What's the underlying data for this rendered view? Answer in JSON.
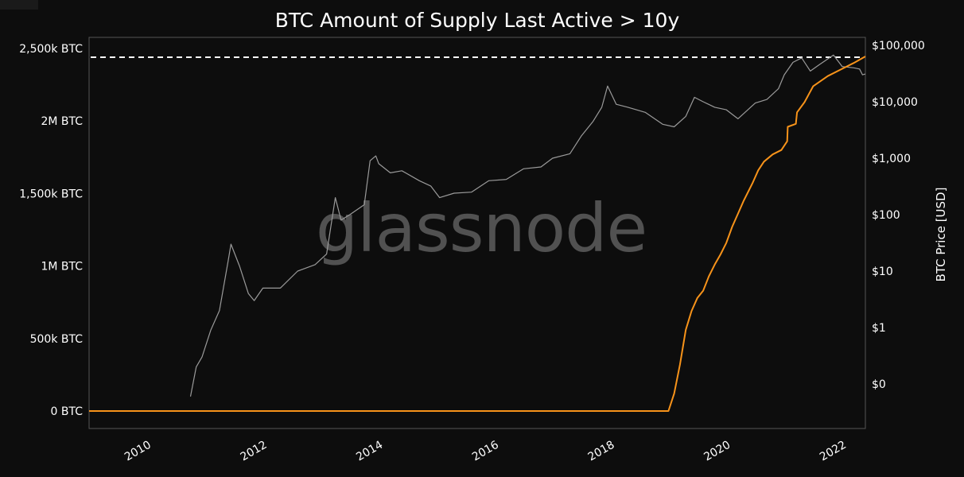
{
  "chart_data": {
    "type": "line",
    "title": "BTC Amount of Supply Last Active > 10y",
    "watermark": "glassnode",
    "xlabel": "",
    "y_left_label": "",
    "y_right_label": "BTC Price [USD]",
    "x_ticks": [
      "2010",
      "2012",
      "2014",
      "2016",
      "2018",
      "2020",
      "2022"
    ],
    "y_left_ticks": [
      "0 BTC",
      "500k BTC",
      "1M BTC",
      "1,500k BTC",
      "2M BTC",
      "2,500k BTC"
    ],
    "y_right_ticks": [
      "$0",
      "$1",
      "$10",
      "$100",
      "$1,000",
      "$10,000",
      "$100,000"
    ],
    "xlim": [
      2009.0,
      2022.4
    ],
    "y_left_lim": [
      0,
      2500000
    ],
    "y_right_scale": "log",
    "grid": false,
    "colors": {
      "background": "#0d0d0d",
      "supply_line": "#f7931a",
      "price_line": "#9a9a9a",
      "ath_line": "#ffffff",
      "axis": "#555555"
    },
    "reference_line": {
      "style": "dashed",
      "axis": "left",
      "value": 2440000
    },
    "series": [
      {
        "axis": "left",
        "color": "#f7931a",
        "points": [
          [
            2009.0,
            0
          ],
          [
            2010.0,
            0
          ],
          [
            2012.0,
            0
          ],
          [
            2014.0,
            0
          ],
          [
            2016.0,
            0
          ],
          [
            2018.0,
            0
          ],
          [
            2019.0,
            0
          ],
          [
            2019.1,
            120000
          ],
          [
            2019.2,
            320000
          ],
          [
            2019.3,
            560000
          ],
          [
            2019.4,
            690000
          ],
          [
            2019.5,
            780000
          ],
          [
            2019.6,
            830000
          ],
          [
            2019.7,
            930000
          ],
          [
            2019.8,
            1010000
          ],
          [
            2019.9,
            1080000
          ],
          [
            2020.0,
            1160000
          ],
          [
            2020.1,
            1270000
          ],
          [
            2020.2,
            1360000
          ],
          [
            2020.3,
            1450000
          ],
          [
            2020.45,
            1570000
          ],
          [
            2020.55,
            1660000
          ],
          [
            2020.65,
            1720000
          ],
          [
            2020.8,
            1770000
          ],
          [
            2020.95,
            1800000
          ],
          [
            2021.05,
            1860000
          ],
          [
            2021.06,
            1960000
          ],
          [
            2021.2,
            1980000
          ],
          [
            2021.22,
            2060000
          ],
          [
            2021.35,
            2130000
          ],
          [
            2021.5,
            2240000
          ],
          [
            2021.75,
            2310000
          ],
          [
            2022.0,
            2360000
          ],
          [
            2022.2,
            2400000
          ],
          [
            2022.4,
            2445000
          ]
        ]
      },
      {
        "axis": "right",
        "color": "#9a9a9a",
        "points": [
          [
            2010.75,
            0.06
          ],
          [
            2010.85,
            0.2
          ],
          [
            2010.95,
            0.3
          ],
          [
            2011.1,
            0.9
          ],
          [
            2011.25,
            2
          ],
          [
            2011.4,
            15
          ],
          [
            2011.45,
            30
          ],
          [
            2011.6,
            12
          ],
          [
            2011.75,
            4
          ],
          [
            2011.85,
            3
          ],
          [
            2012.0,
            5
          ],
          [
            2012.3,
            5
          ],
          [
            2012.6,
            10
          ],
          [
            2012.9,
            13
          ],
          [
            2013.1,
            20
          ],
          [
            2013.25,
            200
          ],
          [
            2013.35,
            80
          ],
          [
            2013.5,
            100
          ],
          [
            2013.75,
            150
          ],
          [
            2013.85,
            900
          ],
          [
            2013.95,
            1100
          ],
          [
            2014.0,
            800
          ],
          [
            2014.2,
            550
          ],
          [
            2014.4,
            600
          ],
          [
            2014.7,
            400
          ],
          [
            2014.9,
            320
          ],
          [
            2015.05,
            200
          ],
          [
            2015.3,
            240
          ],
          [
            2015.6,
            250
          ],
          [
            2015.9,
            400
          ],
          [
            2016.2,
            420
          ],
          [
            2016.5,
            650
          ],
          [
            2016.8,
            700
          ],
          [
            2017.0,
            1000
          ],
          [
            2017.3,
            1200
          ],
          [
            2017.5,
            2500
          ],
          [
            2017.7,
            4500
          ],
          [
            2017.85,
            8000
          ],
          [
            2017.95,
            19000
          ],
          [
            2018.1,
            9000
          ],
          [
            2018.3,
            8000
          ],
          [
            2018.6,
            6500
          ],
          [
            2018.9,
            4000
          ],
          [
            2019.1,
            3600
          ],
          [
            2019.3,
            5500
          ],
          [
            2019.45,
            12000
          ],
          [
            2019.6,
            10000
          ],
          [
            2019.8,
            8000
          ],
          [
            2020.0,
            7200
          ],
          [
            2020.2,
            5000
          ],
          [
            2020.5,
            9500
          ],
          [
            2020.7,
            11000
          ],
          [
            2020.9,
            17000
          ],
          [
            2021.0,
            30000
          ],
          [
            2021.15,
            50000
          ],
          [
            2021.3,
            60000
          ],
          [
            2021.45,
            35000
          ],
          [
            2021.6,
            45000
          ],
          [
            2021.85,
            67000
          ],
          [
            2022.0,
            42000
          ],
          [
            2022.2,
            40000
          ],
          [
            2022.3,
            38000
          ],
          [
            2022.35,
            30000
          ],
          [
            2022.4,
            31000
          ]
        ]
      }
    ]
  }
}
